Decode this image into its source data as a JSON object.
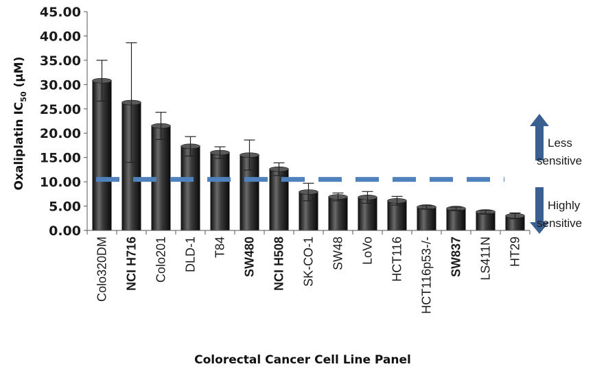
{
  "chart_data": {
    "type": "bar",
    "xlabel": "Colorectal Cancer Cell Line Panel",
    "ylabel_main": "Oxaliplatin IC",
    "ylabel_sub": "50",
    "ylabel_unit": " (μM)",
    "ylim": [
      0,
      45
    ],
    "yticks": [
      "0.00",
      "5.00",
      "10.00",
      "15.00",
      "20.00",
      "25.00",
      "30.00",
      "35.00",
      "40.00",
      "45.00"
    ],
    "grid": false,
    "threshold": 10.5,
    "categories": [
      {
        "label": "Colo320DM",
        "bold": false
      },
      {
        "label": "NCI H716",
        "bold": true
      },
      {
        "label": "Colo201",
        "bold": false
      },
      {
        "label": "DLD-1",
        "bold": false
      },
      {
        "label": "T84",
        "bold": false
      },
      {
        "label": "SW480",
        "bold": true
      },
      {
        "label": "NCI H508",
        "bold": true
      },
      {
        "label": "SK-CO-1",
        "bold": false
      },
      {
        "label": "SW48",
        "bold": false
      },
      {
        "label": "LoVo",
        "bold": false
      },
      {
        "label": "HCT116",
        "bold": false
      },
      {
        "label": "HCT116p53-/-",
        "bold": false
      },
      {
        "label": "SW837",
        "bold": true
      },
      {
        "label": "LS411N",
        "bold": false
      },
      {
        "label": "HT29",
        "bold": false
      }
    ],
    "values": [
      30.8,
      26.3,
      21.5,
      17.3,
      16.0,
      15.5,
      12.6,
      7.9,
      6.9,
      6.8,
      6.1,
      4.8,
      4.5,
      3.8,
      3.0
    ],
    "errors": [
      4.2,
      12.3,
      2.8,
      2.0,
      1.2,
      3.1,
      1.3,
      1.8,
      0.8,
      1.2,
      0.9,
      0.3,
      0.3,
      0.3,
      0.6
    ],
    "annotations": {
      "less": [
        "Less",
        "sensitive"
      ],
      "highly": [
        "Highly",
        "sensitive"
      ]
    },
    "colors": {
      "bar": "#2e2e2e",
      "threshold": "#4f81bd",
      "arrow": "#3a5f91"
    }
  }
}
